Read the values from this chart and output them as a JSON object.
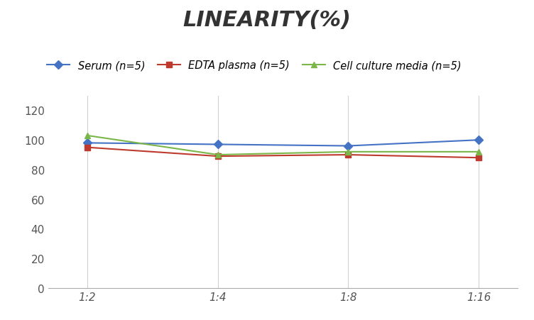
{
  "title": "LINEARITY(%)",
  "x_labels": [
    "1:2",
    "1:4",
    "1:8",
    "1:16"
  ],
  "x_positions": [
    0,
    1,
    2,
    3
  ],
  "series": [
    {
      "label": "Serum (n=5)",
      "color": "#4472C4",
      "marker": "D",
      "values": [
        98,
        97,
        96,
        100
      ]
    },
    {
      "label": "EDTA plasma (n=5)",
      "color": "#BE3A2E",
      "marker": "s",
      "values": [
        95,
        89,
        90,
        88
      ]
    },
    {
      "label": "Cell culture media (n=5)",
      "color": "#7AB648",
      "marker": "^",
      "values": [
        103,
        90,
        92,
        92
      ]
    }
  ],
  "ylim": [
    0,
    130
  ],
  "yticks": [
    0,
    20,
    40,
    60,
    80,
    100,
    120
  ],
  "grid_color": "#D0D0D0",
  "background_color": "#FFFFFF",
  "title_fontsize": 22,
  "legend_fontsize": 10.5,
  "tick_fontsize": 11
}
